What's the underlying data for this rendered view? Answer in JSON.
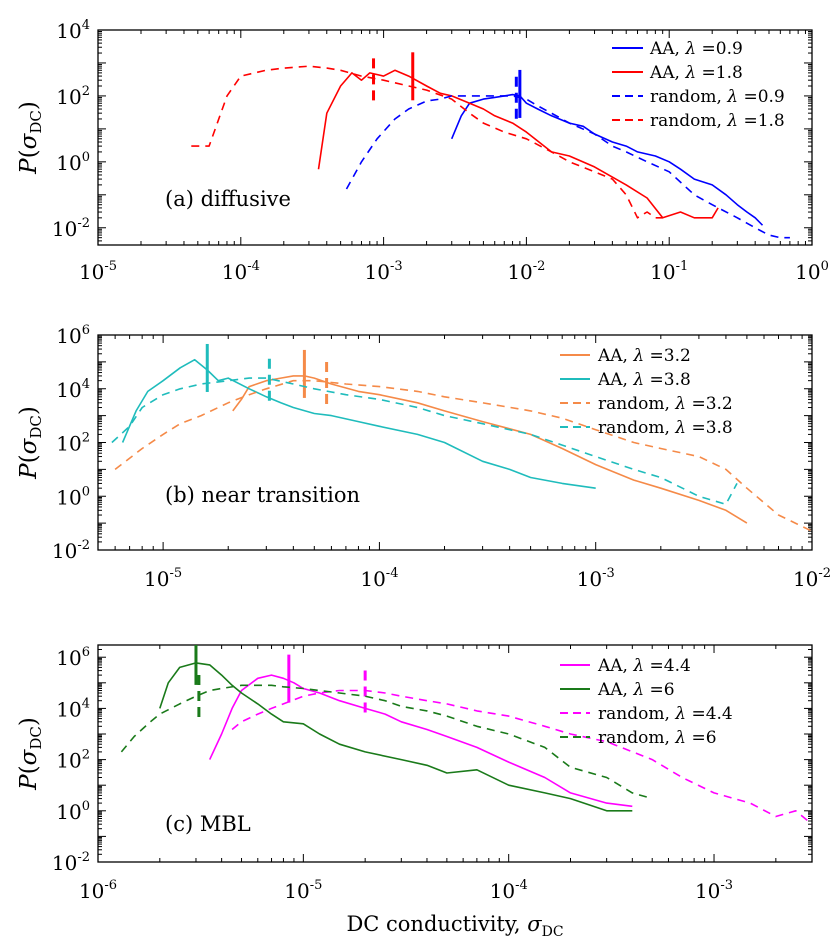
{
  "chart_data": [
    {
      "type": "line",
      "panel_label": "(a) diffusive",
      "xscale": "log",
      "yscale": "log",
      "xlim": [
        1e-05,
        1
      ],
      "ylim": [
        0.003,
        10000
      ],
      "ylabel": "P(σ_DC)",
      "xticks": [
        {
          "value": 1e-05,
          "base": "10",
          "exp": "-5"
        },
        {
          "value": 0.0001,
          "base": "10",
          "exp": "-4"
        },
        {
          "value": 0.001,
          "base": "10",
          "exp": "-3"
        },
        {
          "value": 0.01,
          "base": "10",
          "exp": "-2"
        },
        {
          "value": 0.1,
          "base": "10",
          "exp": "-1"
        },
        {
          "value": 1,
          "base": "10",
          "exp": "0"
        }
      ],
      "yticks": [
        {
          "value": 0.01,
          "base": "10",
          "exp": "-2"
        },
        {
          "value": 1,
          "base": "10",
          "exp": "0"
        },
        {
          "value": 100,
          "base": "10",
          "exp": "2"
        },
        {
          "value": 10000,
          "base": "10",
          "exp": "4"
        }
      ],
      "legend_position": "top-right",
      "series": [
        {
          "name": "AA, λ =0.9",
          "color": "#0000ff",
          "dash": "solid",
          "marker_x": 0.009,
          "x": [
            0.003,
            0.0035,
            0.004,
            0.005,
            0.006,
            0.007,
            0.008,
            0.009,
            0.01,
            0.012,
            0.015,
            0.02,
            0.025,
            0.03,
            0.04,
            0.05,
            0.06,
            0.08,
            0.1,
            0.12,
            0.15,
            0.2,
            0.25,
            0.3,
            0.35,
            0.4,
            0.45
          ],
          "y": [
            5,
            25,
            60,
            80,
            90,
            100,
            110,
            100,
            60,
            40,
            25,
            15,
            12,
            7,
            4,
            3,
            2,
            1.5,
            1,
            0.6,
            0.3,
            0.2,
            0.1,
            0.05,
            0.03,
            0.02,
            0.012
          ]
        },
        {
          "name": "AA, λ =1.8",
          "color": "#ff0000",
          "dash": "solid",
          "marker_x": 0.0016,
          "x": [
            0.00035,
            0.0004,
            0.0005,
            0.0006,
            0.0007,
            0.0008,
            0.001,
            0.0012,
            0.0015,
            0.002,
            0.0025,
            0.003,
            0.004,
            0.005,
            0.006,
            0.008,
            0.01,
            0.015,
            0.02,
            0.03,
            0.05,
            0.07,
            0.09,
            0.12,
            0.15,
            0.2,
            0.22
          ],
          "y": [
            0.6,
            30,
            200,
            500,
            300,
            500,
            400,
            600,
            400,
            200,
            120,
            100,
            60,
            40,
            25,
            15,
            8,
            2,
            1.5,
            0.7,
            0.2,
            0.08,
            0.02,
            0.03,
            0.02,
            0.02,
            0.04
          ]
        },
        {
          "name": "random, λ =0.9",
          "color": "#0000ff",
          "dash": "8,6",
          "marker_x": 0.0085,
          "x": [
            0.00055,
            0.0007,
            0.0009,
            0.0012,
            0.0015,
            0.002,
            0.0025,
            0.003,
            0.004,
            0.005,
            0.006,
            0.008,
            0.01,
            0.012,
            0.015,
            0.02,
            0.03,
            0.04,
            0.05,
            0.07,
            0.1,
            0.15,
            0.2,
            0.3,
            0.4,
            0.5,
            0.6,
            0.7
          ],
          "y": [
            0.15,
            1,
            5,
            20,
            40,
            70,
            80,
            100,
            100,
            100,
            100,
            100,
            80,
            50,
            30,
            15,
            7,
            3,
            2,
            1,
            0.5,
            0.1,
            0.05,
            0.02,
            0.01,
            0.006,
            0.005,
            0.005
          ]
        },
        {
          "name": "random, λ =1.8",
          "color": "#ff0000",
          "dash": "8,6",
          "marker_x": 0.00085,
          "x": [
            4.5e-05,
            6e-05,
            8e-05,
            0.0001,
            0.00015,
            0.0002,
            0.0003,
            0.0004,
            0.0005,
            0.0007,
            0.001,
            0.0015,
            0.002,
            0.003,
            0.004,
            0.005,
            0.007,
            0.01,
            0.015,
            0.02,
            0.03,
            0.04,
            0.05,
            0.06,
            0.07,
            0.08,
            0.09
          ],
          "y": [
            3,
            3,
            100,
            400,
            600,
            700,
            800,
            700,
            600,
            400,
            300,
            200,
            150,
            80,
            30,
            15,
            8,
            5,
            2,
            1,
            0.5,
            0.3,
            0.1,
            0.02,
            0.03,
            0.02,
            0.02
          ]
        }
      ]
    },
    {
      "type": "line",
      "panel_label": "(b) near transition",
      "xscale": "log",
      "yscale": "log",
      "xlim": [
        5e-06,
        0.01
      ],
      "ylim": [
        0.01,
        1000000
      ],
      "ylabel": "P(σ_DC)",
      "xticks": [
        {
          "value": 1e-05,
          "base": "10",
          "exp": "-5"
        },
        {
          "value": 0.0001,
          "base": "10",
          "exp": "-4"
        },
        {
          "value": 0.001,
          "base": "10",
          "exp": "-3"
        },
        {
          "value": 0.01,
          "base": "10",
          "exp": "-2"
        }
      ],
      "yticks": [
        {
          "value": 0.01,
          "base": "10",
          "exp": "-2"
        },
        {
          "value": 1,
          "base": "10",
          "exp": "0"
        },
        {
          "value": 100,
          "base": "10",
          "exp": "2"
        },
        {
          "value": 10000,
          "base": "10",
          "exp": "4"
        },
        {
          "value": 1000000,
          "base": "10",
          "exp": "6"
        }
      ],
      "legend_position": "top-right",
      "series": [
        {
          "name": "AA, λ =3.2",
          "color": "#f58a48",
          "dash": "solid",
          "marker_x": 4.5e-05,
          "x": [
            2.1e-05,
            2.3e-05,
            2.5e-05,
            3e-05,
            3.5e-05,
            4e-05,
            4.5e-05,
            5e-05,
            6e-05,
            8e-05,
            0.0001,
            0.00015,
            0.0002,
            0.0003,
            0.0005,
            0.0007,
            0.001,
            0.0015,
            0.002,
            0.003,
            0.004,
            0.005
          ],
          "y": [
            1500,
            4000,
            12000,
            20000,
            25000,
            30000,
            30000,
            25000,
            15000,
            8000,
            6000,
            3000,
            1500,
            600,
            200,
            60,
            15,
            4,
            2,
            0.7,
            0.3,
            0.1
          ]
        },
        {
          "name": "AA, λ =3.8",
          "color": "#1fbcbc",
          "dash": "solid",
          "marker_x": 1.6e-05,
          "x": [
            6.5e-06,
            7.5e-06,
            8.5e-06,
            1e-05,
            1.2e-05,
            1.4e-05,
            1.6e-05,
            1.8e-05,
            2e-05,
            2.5e-05,
            3e-05,
            3.5e-05,
            4e-05,
            5e-05,
            6e-05,
            8e-05,
            0.0001,
            0.00015,
            0.0002,
            0.0003,
            0.0004,
            0.0005,
            0.0007,
            0.001
          ],
          "y": [
            100,
            1500,
            8000,
            20000,
            60000,
            120000,
            50000,
            20000,
            25000,
            10000,
            5000,
            3000,
            2000,
            1200,
            1000,
            600,
            400,
            200,
            100,
            20,
            10,
            5,
            3,
            2
          ]
        },
        {
          "name": "random, λ =3.2",
          "color": "#f58a48",
          "dash": "8,6",
          "marker_x": 5.7e-05,
          "x": [
            6e-06,
            8e-06,
            1e-05,
            1.2e-05,
            1.5e-05,
            2e-05,
            2.5e-05,
            3e-05,
            4e-05,
            5e-05,
            7e-05,
            0.0001,
            0.00015,
            0.0002,
            0.0003,
            0.0005,
            0.0007,
            0.001,
            0.0015,
            0.002,
            0.003,
            0.004,
            0.005,
            0.007,
            0.01
          ],
          "y": [
            10,
            60,
            200,
            500,
            1000,
            3000,
            6000,
            10000,
            20000,
            20000,
            15000,
            12000,
            8000,
            5000,
            3000,
            1500,
            800,
            300,
            100,
            60,
            30,
            10,
            2,
            0.2,
            0.05
          ]
        },
        {
          "name": "random, λ =3.8",
          "color": "#1fbcbc",
          "dash": "8,6",
          "marker_x": 3.1e-05,
          "x": [
            5.8e-06,
            7e-06,
            8e-06,
            1e-05,
            1.2e-05,
            1.5e-05,
            2e-05,
            2.5e-05,
            3e-05,
            4e-05,
            5e-05,
            7e-05,
            0.0001,
            0.00015,
            0.0002,
            0.0003,
            0.0005,
            0.0007,
            0.001,
            0.0015,
            0.002,
            0.003,
            0.004,
            0.0045
          ],
          "y": [
            100,
            400,
            2000,
            6000,
            10000,
            15000,
            20000,
            25000,
            25000,
            15000,
            10000,
            6000,
            4000,
            2000,
            1000,
            500,
            200,
            80,
            30,
            10,
            5,
            1,
            0.5,
            3
          ]
        }
      ]
    },
    {
      "type": "line",
      "panel_label": "(c) MBL",
      "xscale": "log",
      "yscale": "log",
      "xlim": [
        1e-06,
        0.003
      ],
      "ylim": [
        0.01,
        3000000
      ],
      "xlabel": "DC conductivity, σ_DC",
      "ylabel": "P(σ_DC)",
      "xticks": [
        {
          "value": 1e-06,
          "base": "10",
          "exp": "-6"
        },
        {
          "value": 1e-05,
          "base": "10",
          "exp": "-5"
        },
        {
          "value": 0.0001,
          "base": "10",
          "exp": "-4"
        },
        {
          "value": 0.001,
          "base": "10",
          "exp": "-3"
        }
      ],
      "yticks": [
        {
          "value": 0.01,
          "base": "10",
          "exp": "-2"
        },
        {
          "value": 1,
          "base": "10",
          "exp": "0"
        },
        {
          "value": 100,
          "base": "10",
          "exp": "2"
        },
        {
          "value": 10000,
          "base": "10",
          "exp": "4"
        },
        {
          "value": 1000000,
          "base": "10",
          "exp": "6"
        }
      ],
      "legend_position": "top-right",
      "series": [
        {
          "name": "AA, λ =4.4",
          "color": "#ff00ff",
          "dash": "solid",
          "marker_x": 8.5e-06,
          "x": [
            3.5e-06,
            4e-06,
            4.5e-06,
            5e-06,
            6e-06,
            7e-06,
            8e-06,
            9e-06,
            1e-05,
            1.2e-05,
            1.5e-05,
            2e-05,
            2.5e-05,
            3e-05,
            4e-05,
            5e-05,
            7e-05,
            0.0001,
            0.00015,
            0.0002,
            0.0003,
            0.0004
          ],
          "y": [
            100,
            1000,
            10000,
            50000,
            150000,
            200000,
            150000,
            100000,
            60000,
            40000,
            20000,
            10000,
            6000,
            3000,
            1500,
            800,
            300,
            80,
            20,
            5,
            2,
            1.5
          ]
        },
        {
          "name": "AA, λ =6",
          "color": "#1a7a1a",
          "dash": "solid",
          "marker_x": 3e-06,
          "x": [
            2e-06,
            2.2e-06,
            2.5e-06,
            3e-06,
            3.5e-06,
            4e-06,
            4.5e-06,
            5e-06,
            6e-06,
            7e-06,
            8e-06,
            1e-05,
            1.2e-05,
            1.5e-05,
            2e-05,
            3e-05,
            4e-05,
            5e-05,
            7e-05,
            0.0001,
            0.00015,
            0.0002,
            0.0003,
            0.0004
          ],
          "y": [
            10000,
            100000,
            400000,
            600000,
            500000,
            200000,
            80000,
            40000,
            15000,
            6000,
            3000,
            2500,
            1000,
            400,
            200,
            100,
            60,
            30,
            40,
            10,
            5,
            3,
            1,
            1
          ]
        },
        {
          "name": "random, λ =4.4",
          "color": "#ff00ff",
          "dash": "8,6",
          "marker_x": 2e-05,
          "x": [
            4.5e-06,
            5e-06,
            6e-06,
            7e-06,
            8e-06,
            1e-05,
            1.2e-05,
            1.5e-05,
            2e-05,
            2.5e-05,
            3e-05,
            4e-05,
            5e-05,
            7e-05,
            0.0001,
            0.00015,
            0.0002,
            0.0003,
            0.0005,
            0.0007,
            0.001,
            0.0015,
            0.002,
            0.0025,
            0.003
          ],
          "y": [
            1500,
            3000,
            6000,
            10000,
            15000,
            30000,
            40000,
            50000,
            50000,
            40000,
            30000,
            20000,
            15000,
            8000,
            5000,
            2000,
            1000,
            500,
            100,
            20,
            5,
            2,
            0.6,
            1,
            0.3
          ]
        },
        {
          "name": "random, λ =6",
          "color": "#1a7a1a",
          "dash": "8,6",
          "marker_x": 3.1e-06,
          "x": [
            1.3e-06,
            1.5e-06,
            1.8e-06,
            2e-06,
            2.5e-06,
            3e-06,
            3.5e-06,
            4e-06,
            5e-06,
            6e-06,
            7e-06,
            8e-06,
            1e-05,
            1.2e-05,
            1.5e-05,
            2e-05,
            2.5e-05,
            3e-05,
            4e-05,
            5e-05,
            7e-05,
            0.0001,
            0.00015,
            0.0002,
            0.0003,
            0.0004,
            0.0005
          ],
          "y": [
            200,
            800,
            3000,
            6000,
            15000,
            30000,
            50000,
            60000,
            80000,
            80000,
            80000,
            70000,
            60000,
            50000,
            40000,
            30000,
            20000,
            12000,
            8000,
            5000,
            2000,
            1000,
            300,
            50,
            20,
            5,
            3
          ]
        }
      ]
    }
  ]
}
